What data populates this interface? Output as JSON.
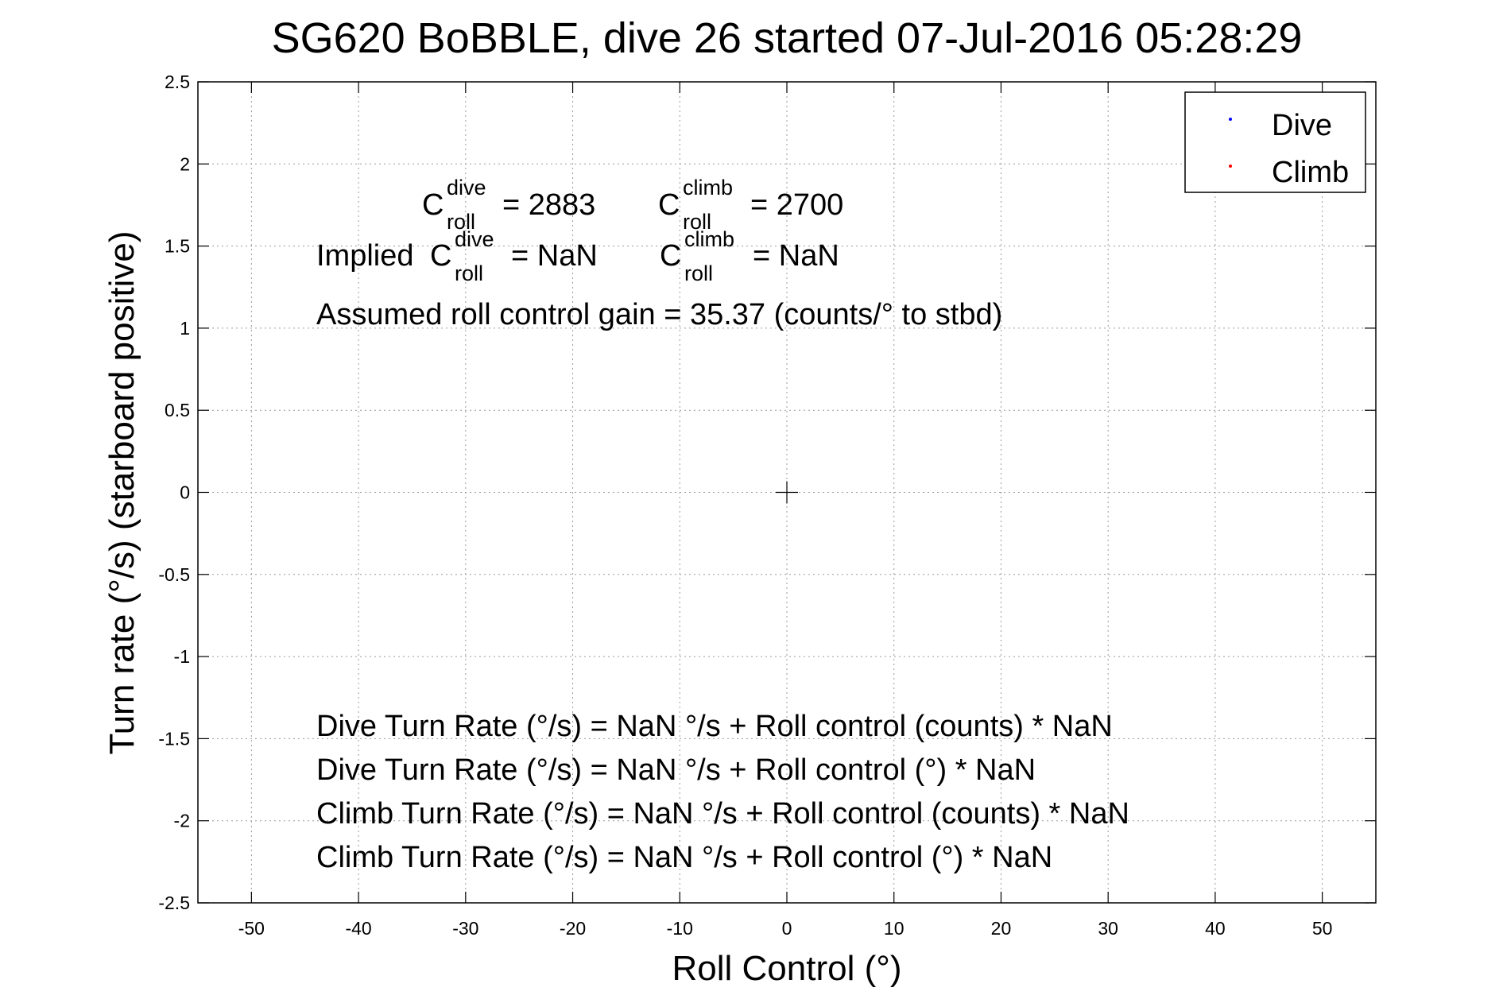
{
  "chart_data": {
    "type": "scatter",
    "title": "SG620 BoBBLE, dive 26 started 07-Jul-2016 05:28:29",
    "xlabel": "Roll Control (°)",
    "ylabel": "Turn rate (°/s) (starboard positive)",
    "xlim": [
      -55,
      55
    ],
    "ylim": [
      -2.5,
      2.5
    ],
    "xticks": [
      -50,
      -40,
      -30,
      -20,
      -10,
      0,
      10,
      20,
      30,
      40,
      50
    ],
    "yticks": [
      -2.5,
      -2,
      -1.5,
      -1,
      -0.5,
      0,
      0.5,
      1,
      1.5,
      2,
      2.5
    ],
    "x_tick_labels": [
      "-50",
      "-40",
      "-30",
      "-20",
      "-10",
      "0",
      "10",
      "20",
      "30",
      "40",
      "50"
    ],
    "y_tick_labels": [
      "-2.5",
      "-2",
      "-1.5",
      "-1",
      "-0.5",
      "0",
      "0.5",
      "1",
      "1.5",
      "2",
      "2.5"
    ],
    "grid": true,
    "legend_position": "top-right",
    "series": [
      {
        "name": "Dive",
        "color": "#0000ff",
        "x": [],
        "y": []
      },
      {
        "name": "Climb",
        "color": "#ff0000",
        "x": [],
        "y": []
      }
    ],
    "origin_marker": {
      "x": 0,
      "y": 0,
      "shape": "+"
    },
    "annotations": {
      "c_roll": {
        "symbol": "C",
        "base": "roll",
        "dive_sup": "dive",
        "climb_sup": "climb",
        "dive_value": "= 2883",
        "climb_value": "= 2700"
      },
      "implied": {
        "prefix": "Implied",
        "dive_value": "= NaN",
        "climb_value": "= NaN"
      },
      "gain": "Assumed roll control gain = 35.37 (counts/° to stbd)",
      "equations": [
        "Dive Turn Rate (°/s) = NaN °/s + Roll control (counts) * NaN",
        "Dive Turn Rate (°/s) = NaN °/s + Roll control (°) * NaN",
        "Climb Turn Rate (°/s) = NaN °/s + Roll control (counts) * NaN",
        "Climb Turn Rate (°/s) = NaN °/s + Roll control (°) * NaN"
      ]
    }
  }
}
